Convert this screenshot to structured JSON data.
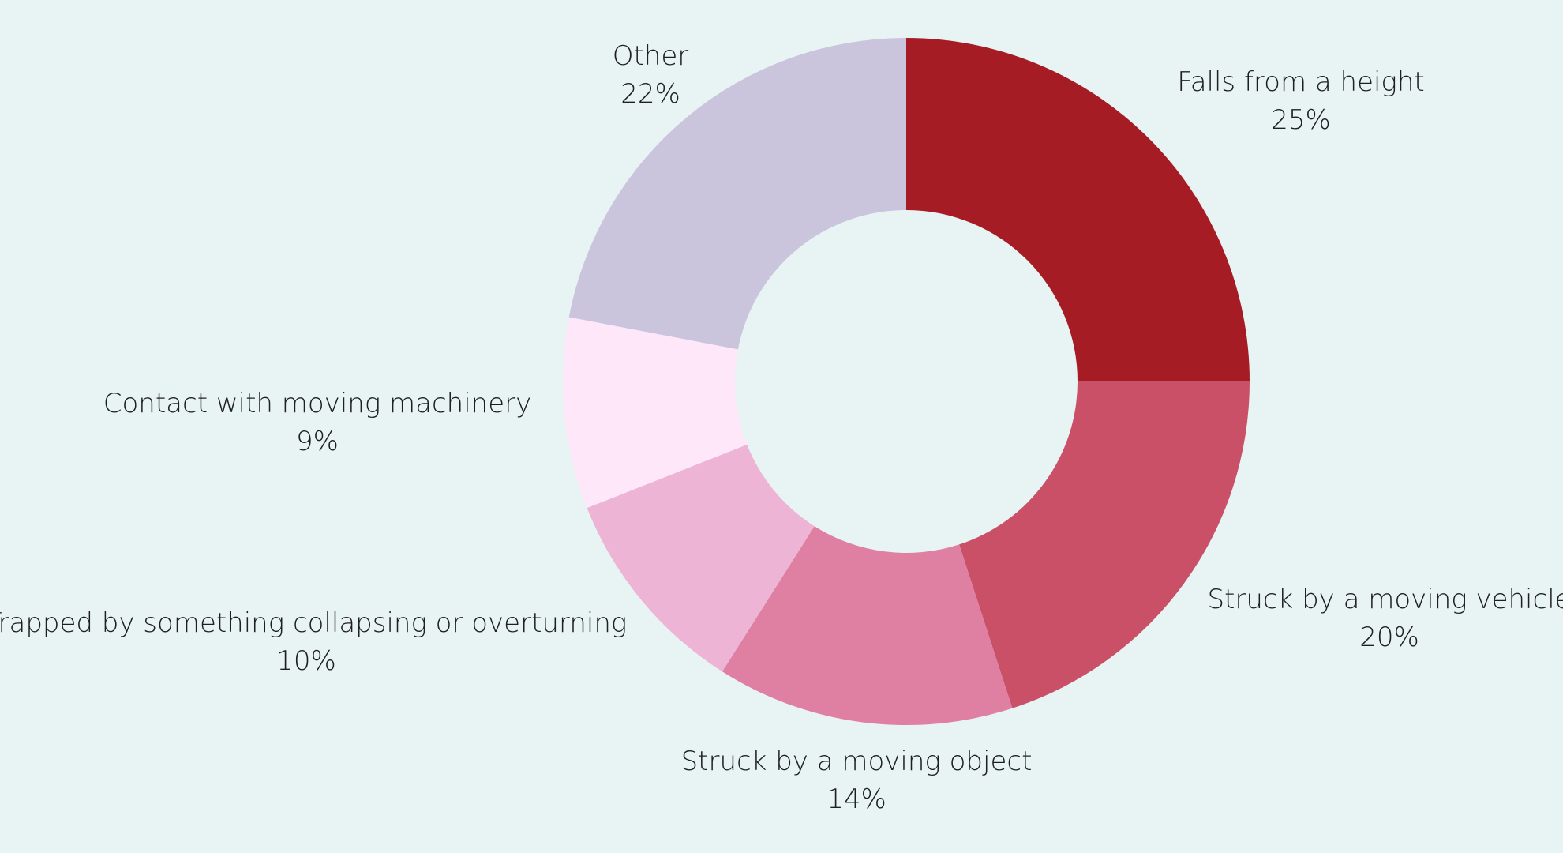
{
  "chart_data": {
    "type": "pie",
    "donut": true,
    "slices": [
      {
        "label": "Falls from a height",
        "value": 25,
        "value_label": "25%",
        "color": "#a51c24"
      },
      {
        "label": "Struck by a moving vehicle",
        "value": 20,
        "value_label": "20%",
        "color": "#c95066"
      },
      {
        "label": "Struck by a moving object",
        "value": 14,
        "value_label": "14%",
        "color": "#df80a2"
      },
      {
        "label": "Trapped by something collapsing or overturning",
        "value": 10,
        "value_label": "10%",
        "color": "#eeb4d5"
      },
      {
        "label": "Contact with moving machinery",
        "value": 9,
        "value_label": "9%",
        "color": "#fde7f9"
      },
      {
        "label": "Other",
        "value": 22,
        "value_label": "22%",
        "color": "#cbc4dd"
      }
    ],
    "background": "#e8f4f4",
    "start_angle": "12 o'clock",
    "direction": "clockwise"
  }
}
